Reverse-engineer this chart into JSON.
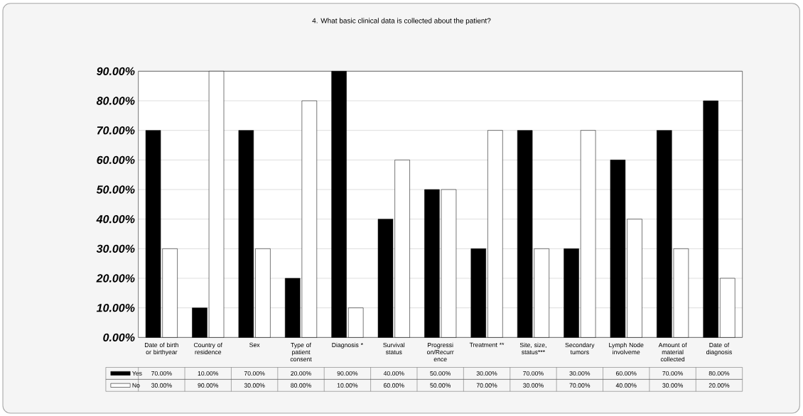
{
  "chart_data": {
    "type": "bar",
    "title": "4. What basic clinical data is collected about the patient?",
    "categories": [
      "Date of birth or birthyear",
      "Country of residence",
      "Sex",
      "Type of patient consent",
      "Diagnosis *",
      "Survival status",
      "Progressi on/Recurr ence",
      "Treatment **",
      "Site, size, status***",
      "Secondary tumors",
      "Lymph Node involveme",
      "Amount of material collected",
      "Date of diagnosis"
    ],
    "series": [
      {
        "name": "Yes",
        "color": "#000000",
        "values": [
          70,
          10,
          70,
          20,
          90,
          40,
          50,
          30,
          70,
          30,
          60,
          70,
          80
        ],
        "value_labels": [
          "70.00%",
          "10.00%",
          "70.00%",
          "20.00%",
          "90.00%",
          "40.00%",
          "50.00%",
          "30.00%",
          "70.00%",
          "30.00%",
          "60.00%",
          "70.00%",
          "80.00%"
        ]
      },
      {
        "name": "No",
        "color": "#ffffff",
        "values": [
          30,
          90,
          30,
          80,
          10,
          60,
          50,
          70,
          30,
          70,
          40,
          30,
          20
        ],
        "value_labels": [
          "30.00%",
          "90.00%",
          "30.00%",
          "80.00%",
          "10.00%",
          "60.00%",
          "50.00%",
          "70.00%",
          "30.00%",
          "70.00%",
          "40.00%",
          "30.00%",
          "20.00%"
        ]
      }
    ],
    "ylim": [
      0,
      90
    ],
    "yticks": [
      {
        "value": 0,
        "label": "0.00%"
      },
      {
        "value": 10,
        "label": "10.00%"
      },
      {
        "value": 20,
        "label": "20.00%"
      },
      {
        "value": 30,
        "label": "30.00%"
      },
      {
        "value": 40,
        "label": "40.00%"
      },
      {
        "value": 50,
        "label": "50.00%"
      },
      {
        "value": 60,
        "label": "60.00%"
      },
      {
        "value": 70,
        "label": "70.00%"
      },
      {
        "value": 80,
        "label": "80.00%"
      },
      {
        "value": 90,
        "label": "90.00%"
      }
    ],
    "grid": "y",
    "legend": "bottom left"
  }
}
